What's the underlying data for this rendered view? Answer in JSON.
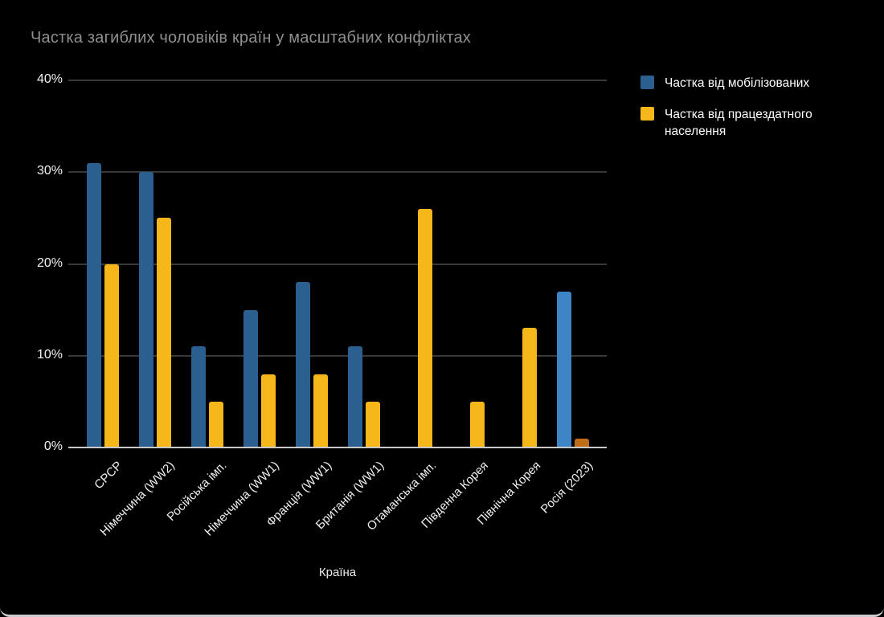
{
  "page": {
    "title": "Частка загиблих чоловіків країн у масштабних конфліктах"
  },
  "legend": {
    "items": [
      {
        "label": "Частка від мобілізованих",
        "color": "#2a5f8f"
      },
      {
        "label": "Частка від працездатного населення",
        "color": "#f5b719"
      }
    ]
  },
  "axes": {
    "x_title": "Країна",
    "y_ticks": [
      "0%",
      "10%",
      "20%",
      "30%",
      "40%"
    ]
  },
  "chart_data": {
    "type": "bar",
    "title": "Частка загиблих чоловіків країн у масштабних конфліктах",
    "xlabel": "Країна",
    "ylabel": "",
    "unit": "percent",
    "ylim": [
      0,
      40
    ],
    "y_tick_step": 10,
    "grid": true,
    "legend_position": "top-right",
    "background_color": "#000000",
    "categories": [
      "СРСР",
      "Німеччина (WW2)",
      "Російська імп.",
      "Німеччина (WW1)",
      "Франція (WW1)",
      "Британія (WW1)",
      "Отаманська імп.",
      "Південна Корея",
      "Північна Корея",
      "Росія (2023)"
    ],
    "series": [
      {
        "name": "Частка від мобілізованих",
        "color": "#2a5f8f",
        "values": [
          31,
          30,
          11,
          15,
          18,
          11,
          null,
          null,
          null,
          17
        ]
      },
      {
        "name": "Частка від працездатного населення",
        "color": "#f5b719",
        "values": [
          20,
          25,
          5,
          8,
          8,
          5,
          26,
          5,
          13,
          1
        ]
      }
    ],
    "color_overrides": [
      {
        "category": "Росія (2023)",
        "series_index": 0,
        "color": "#3d85c6"
      },
      {
        "category": "Росія (2023)",
        "series_index": 1,
        "color": "#c06d1a"
      }
    ]
  }
}
